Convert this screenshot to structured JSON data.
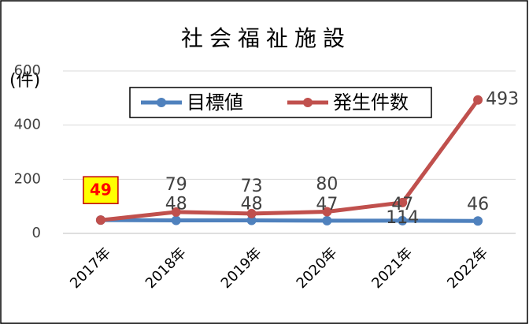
{
  "chart_data": {
    "type": "line",
    "title": "社会福祉施設",
    "y_label": "(件)",
    "categories": [
      "2017年",
      "2018年",
      "2019年",
      "2020年",
      "2021年",
      "2022年"
    ],
    "series": [
      {
        "name": "目標値",
        "color": "#4f81bd",
        "values": [
          49,
          48,
          48,
          47,
          47,
          46
        ]
      },
      {
        "name": "発生件数",
        "color": "#c0504d",
        "values": [
          49,
          79,
          73,
          80,
          114,
          493
        ]
      }
    ],
    "ylim": [
      0,
      600
    ],
    "yticks": [
      0,
      200,
      400,
      600
    ],
    "grid": true,
    "legend": "top"
  }
}
